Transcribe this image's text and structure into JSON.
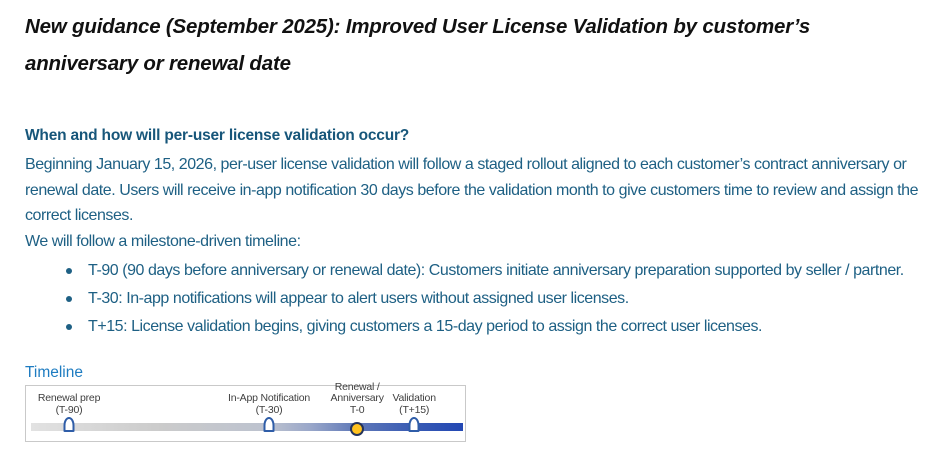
{
  "document": {
    "title": "New guidance (September 2025): Improved User License Validation by customer’s anniversary or renewal date",
    "section_heading": "When and how will per-user license validation occur?",
    "paragraph_rollout": "Beginning January 15, 2026, per-user license validation will follow a staged rollout aligned to each customer’s contract anniversary or renewal date. Users will receive in-app notification 30 days before the validation month to give customers time to review and assign the correct licenses.",
    "paragraph_timeline_intro": "We will follow a milestone-driven timeline:",
    "bullets": [
      "T-90 (90 days before anniversary or renewal date): Customers initiate anniversary preparation supported by seller / partner.",
      "T-30: In-app notifications will appear to alert users without assigned user licenses.",
      "T+15: License validation begins, giving customers a 15-day period to assign the correct user licenses."
    ],
    "timeline": {
      "label": "Timeline",
      "milestones": [
        {
          "label_lines": [
            "Renewal prep",
            "(T-90)"
          ],
          "marker": "pin",
          "position_pct": 8.8
        },
        {
          "label_lines": [
            "In-App Notification",
            "(T-30)"
          ],
          "marker": "pin",
          "position_pct": 55.1
        },
        {
          "label_lines": [
            "Renewal /",
            "Anniversary",
            "T-0"
          ],
          "marker": "circle",
          "position_pct": 75.5
        },
        {
          "label_lines": [
            "Validation",
            "(T+15)"
          ],
          "marker": "pin",
          "position_pct": 88.7
        }
      ]
    }
  },
  "colors": {
    "title_text": "#111111",
    "heading_blue": "#17567A",
    "body_blue": "#1E6084",
    "timeline_label_blue": "#1E7CC1",
    "box_border": "#C9C9C9",
    "label_gray": "#3F3F3F",
    "pin_border": "#2F5DA8",
    "pin_fill": "#FFFFFF",
    "circle_fill": "#FFC21F",
    "circle_border": "#24335B",
    "bar_gradient": [
      "#E2E2E2",
      "#CBCBCB",
      "#BCC2CF",
      "#98A6C9",
      "#6079B8",
      "#3A5CB4",
      "#2348B4"
    ]
  }
}
